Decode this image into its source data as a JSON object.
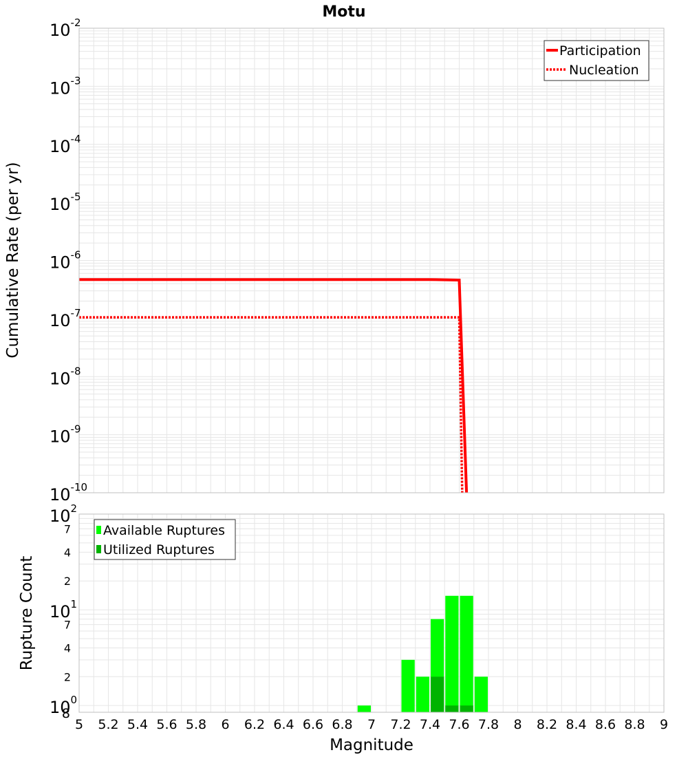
{
  "colors": {
    "participation": "#ff0000",
    "nucleation": "#ff0000",
    "available": "#00ff00",
    "utilized": "#00b300",
    "grid": "#e6e6e6",
    "frame": "#bfbfbf"
  },
  "chart_data": [
    {
      "type": "line",
      "title": "Motu",
      "xlabel": "",
      "ylabel": "Cumulative Rate (per yr)",
      "xlim": [
        5,
        9
      ],
      "ylim": [
        1e-10,
        0.01
      ],
      "yscale": "log",
      "grid": true,
      "legend_position": "top-right",
      "y_tick_exponents": [
        "-2",
        "-3",
        "-4",
        "-5",
        "-6",
        "-7",
        "-8",
        "-9",
        "-10"
      ],
      "y_tick_base": "10",
      "series": [
        {
          "name": "Participation",
          "style": "solid",
          "x": [
            5.0,
            7.4,
            7.6,
            7.65
          ],
          "y": [
            4.7e-07,
            4.7e-07,
            4.6e-07,
            1e-10
          ]
        },
        {
          "name": "Nucleation",
          "style": "dotted",
          "x": [
            5.0,
            7.4,
            7.6,
            7.62
          ],
          "y": [
            1.05e-07,
            1.05e-07,
            1.05e-07,
            1e-10
          ]
        }
      ]
    },
    {
      "type": "bar",
      "title": "",
      "xlabel": "Magnitude",
      "ylabel": "Rupture Count",
      "xlim": [
        5,
        9
      ],
      "ylim": [
        0.85,
        100
      ],
      "yscale": "log",
      "grid": true,
      "legend_position": "top-left",
      "x_ticks": [
        "5",
        "5.2",
        "5.4",
        "5.6",
        "5.8",
        "6",
        "6.2",
        "6.4",
        "6.6",
        "6.8",
        "7",
        "7.2",
        "7.4",
        "7.6",
        "7.8",
        "8",
        "8.2",
        "8.4",
        "8.6",
        "8.8",
        "9"
      ],
      "y_major_ticks": [
        {
          "base": "10",
          "exp": "2",
          "value": 100
        },
        {
          "base": "10",
          "exp": "1",
          "value": 10
        },
        {
          "base": "10",
          "exp": "0",
          "value": 1
        }
      ],
      "y_minor_ticks": [
        {
          "label": "7",
          "value": 70
        },
        {
          "label": "4",
          "value": 40
        },
        {
          "label": "2",
          "value": 20
        },
        {
          "label": "7",
          "value": 7
        },
        {
          "label": "4",
          "value": 4
        },
        {
          "label": "2",
          "value": 2
        },
        {
          "label": "8",
          "value": 0.85
        }
      ],
      "bin_width": 0.1,
      "series": [
        {
          "name": "Available Ruptures",
          "x": [
            6.95,
            7.25,
            7.35,
            7.45,
            7.55,
            7.65,
            7.75
          ],
          "values": [
            1,
            3,
            2,
            8,
            14,
            14,
            2
          ]
        },
        {
          "name": "Utilized Ruptures",
          "x": [
            7.45,
            7.55,
            7.65
          ],
          "values": [
            2,
            1,
            1
          ]
        }
      ]
    }
  ]
}
